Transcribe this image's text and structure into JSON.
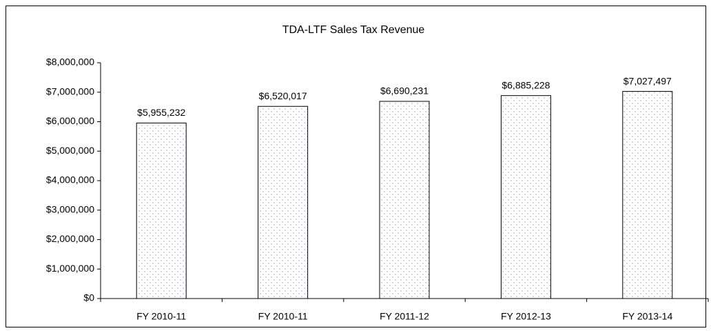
{
  "chart_data": {
    "type": "bar",
    "title": "TDA-LTF Sales Tax Revenue",
    "categories": [
      "FY 2010-11",
      "FY 2010-11",
      "FY 2011-12",
      "FY 2012-13",
      "FY 2013-14"
    ],
    "values": [
      5955232,
      6520017,
      6690231,
      6885228,
      7027497
    ],
    "value_labels": [
      "$5,955,232",
      "$6,520,017",
      "$6,690,231",
      "$6,885,228",
      "$7,027,497"
    ],
    "color": "#9a9ad0",
    "ylim": [
      0,
      8000000
    ],
    "yticks": [
      {
        "value": 0,
        "label": "$0"
      },
      {
        "value": 1000000,
        "label": "$1,000,000"
      },
      {
        "value": 2000000,
        "label": "$2,000,000"
      },
      {
        "value": 3000000,
        "label": "$3,000,000"
      },
      {
        "value": 4000000,
        "label": "$4,000,000"
      },
      {
        "value": 5000000,
        "label": "$5,000,000"
      },
      {
        "value": 6000000,
        "label": "$6,000,000"
      },
      {
        "value": 7000000,
        "label": "$7,000,000"
      },
      {
        "value": 8000000,
        "label": "$8,000,000"
      }
    ],
    "grid": false
  }
}
